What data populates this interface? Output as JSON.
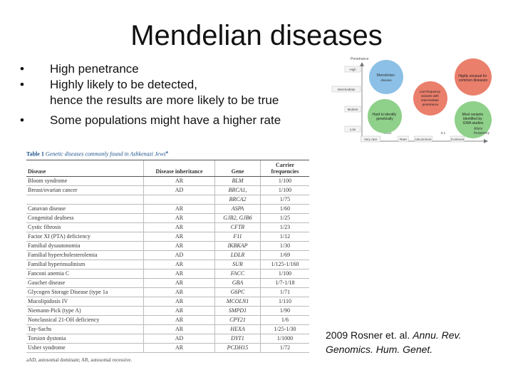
{
  "title": "Mendelian diseases",
  "bullets": [
    "High penetrance",
    "Highly likely to be detected,",
    "hence the results are more likely to be true",
    "Some populations might have a higher rate"
  ],
  "bullet_symbol": "•",
  "table": {
    "caption_label": "Table 1",
    "caption_text": "Genetic diseases commonly found in Ashkenazi Jews",
    "caption_sup": "a",
    "headers": [
      "Disease",
      "Disease inheritance",
      "Gene",
      "Carrier frequencies"
    ],
    "rows": [
      [
        "Bloom syndrome",
        "AR",
        "BLM",
        "1/100"
      ],
      [
        "Breast/ovarian cancer",
        "AD",
        "BRCA1,",
        "1/100"
      ],
      [
        "",
        "",
        "BRCA2",
        "1/75"
      ],
      [
        "Canavan disease",
        "AR",
        "ASPA",
        "1/60"
      ],
      [
        "Congenital deafness",
        "AR",
        "GJB2, GJB6",
        "1/25"
      ],
      [
        "Cystic fibrosis",
        "AR",
        "CFTR",
        "1/23"
      ],
      [
        "Factor XI (PTA) deficiency",
        "AR",
        "F11",
        "1/12"
      ],
      [
        "Familial dysautonomia",
        "AR",
        "IKBKAP",
        "1/30"
      ],
      [
        "Familial hypercholesterolemia",
        "AD",
        "LDLR",
        "1/69"
      ],
      [
        "Familial hyperinsulinism",
        "AR",
        "SUR",
        "1/125-1/160"
      ],
      [
        "Fanconi anemia C",
        "AR",
        "FACC",
        "1/100"
      ],
      [
        "Gaucher disease",
        "AR",
        "GBA",
        "1/7-1/18"
      ],
      [
        "Glycogen Storage Disease (type 1a",
        "AR",
        "G6PC",
        "1/71"
      ],
      [
        "Mucolipidosis IV",
        "AR",
        "MCOLN1",
        "1/110"
      ],
      [
        "Niemann-Pick (type A)",
        "AR",
        "SMPD1",
        "1/90"
      ],
      [
        "Nonclassical 21-OH deficiency",
        "AR",
        "CPY21",
        "1/6"
      ],
      [
        "Tay-Sachs",
        "AR",
        "HEXA",
        "1/25-1/30"
      ],
      [
        "Torsion dystonia",
        "AD",
        "DYT1",
        "1/1000"
      ],
      [
        "Usher syndrome",
        "AR",
        "PCDH15",
        "1/72"
      ]
    ],
    "footnote": "aAD, autosomal dominant; AR, autosomal recessive."
  },
  "diagram": {
    "y_axis_title": "Penetrance",
    "y_levels": [
      "High",
      "Intermediate",
      "Modest",
      "Low"
    ],
    "x_levels": [
      "Very rare",
      "0.001",
      "Rare",
      "Uncommon",
      "0.1",
      "Common"
    ],
    "x_axis_title": [
      "Allele",
      "frequency"
    ],
    "bubbles": [
      {
        "lines": [
          "Mendelian",
          "disease"
        ]
      },
      {
        "lines": [
          "Highly unusual for",
          "common diseases"
        ]
      },
      {
        "lines": [
          "Low-frequency",
          "variants with",
          "intermediate",
          "penetrance"
        ]
      },
      {
        "lines": [
          "Hard to identify",
          "genetically"
        ]
      },
      {
        "lines": [
          "Most variants",
          "identified by",
          "GWA studies"
        ]
      }
    ],
    "colors": {
      "blue": "#8cc0e6",
      "red": "#ea7f6c",
      "green": "#8fd08a"
    }
  },
  "reference": {
    "line1_plain": "2009 Rosner et. al. ",
    "line1_italic": "Annu. Rev.",
    "line2_italic": "Genomics. Hum. Genet."
  }
}
